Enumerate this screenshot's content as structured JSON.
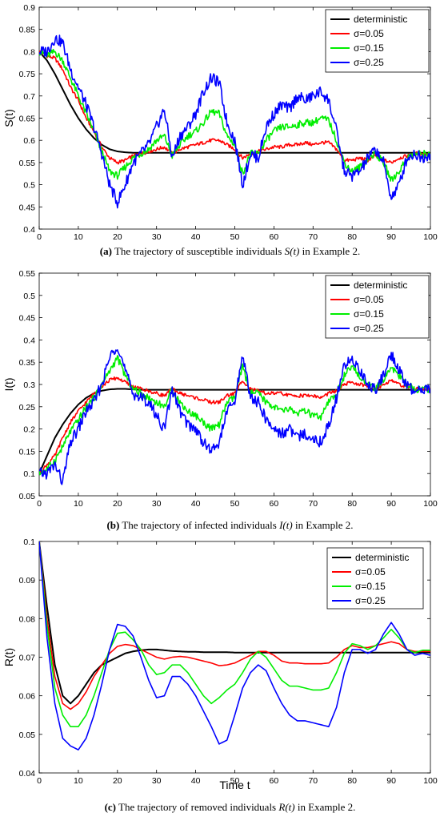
{
  "chart_data": [
    {
      "type": "line",
      "panel": "a",
      "ylabel": "S(t)",
      "xlabel": "",
      "xlim": [
        0,
        100
      ],
      "ylim": [
        0.4,
        0.9
      ],
      "xticks": [
        "0",
        "10",
        "20",
        "30",
        "40",
        "50",
        "60",
        "70",
        "80",
        "90",
        "100"
      ],
      "yticks": [
        "0.4",
        "0.45",
        "0.5",
        "0.55",
        "0.6",
        "0.65",
        "0.7",
        "0.75",
        "0.8",
        "0.85",
        "0.9"
      ],
      "legend_position": "top-right",
      "caption": {
        "label": "(a)",
        "text": " The trajectory of susceptible individuals ",
        "sym": "S(t)",
        "tail": " in Example 2."
      },
      "x": [
        0,
        2,
        4,
        6,
        8,
        10,
        12,
        14,
        16,
        18,
        20,
        22,
        24,
        26,
        28,
        30,
        32,
        34,
        36,
        38,
        40,
        42,
        44,
        46,
        48,
        50,
        52,
        54,
        56,
        58,
        60,
        62,
        64,
        66,
        68,
        70,
        72,
        74,
        76,
        78,
        80,
        82,
        84,
        86,
        88,
        90,
        92,
        94,
        96,
        98,
        100
      ],
      "series": [
        {
          "name": "deterministic",
          "color": "#000000",
          "values": [
            0.8,
            0.78,
            0.75,
            0.715,
            0.68,
            0.65,
            0.625,
            0.605,
            0.59,
            0.58,
            0.575,
            0.573,
            0.572,
            0.572,
            0.572,
            0.572,
            0.572,
            0.572,
            0.572,
            0.572,
            0.572,
            0.572,
            0.572,
            0.572,
            0.572,
            0.572,
            0.572,
            0.572,
            0.572,
            0.572,
            0.572,
            0.572,
            0.572,
            0.572,
            0.572,
            0.572,
            0.572,
            0.572,
            0.572,
            0.572,
            0.572,
            0.572,
            0.572,
            0.572,
            0.572,
            0.572,
            0.572,
            0.572,
            0.572,
            0.572,
            0.572
          ]
        },
        {
          "name": "σ=0.05",
          "color": "#ff0000",
          "values": [
            0.8,
            0.79,
            0.785,
            0.76,
            0.72,
            0.69,
            0.65,
            0.62,
            0.585,
            0.56,
            0.55,
            0.555,
            0.565,
            0.57,
            0.575,
            0.58,
            0.585,
            0.57,
            0.58,
            0.585,
            0.59,
            0.595,
            0.6,
            0.6,
            0.59,
            0.58,
            0.56,
            0.57,
            0.575,
            0.58,
            0.585,
            0.585,
            0.59,
            0.59,
            0.595,
            0.59,
            0.595,
            0.595,
            0.58,
            0.555,
            0.555,
            0.56,
            0.555,
            0.565,
            0.555,
            0.55,
            0.56,
            0.565,
            0.57,
            0.57,
            0.57
          ]
        },
        {
          "name": "σ=0.15",
          "color": "#00ee00",
          "values": [
            0.8,
            0.79,
            0.8,
            0.78,
            0.74,
            0.7,
            0.66,
            0.62,
            0.575,
            0.53,
            0.52,
            0.54,
            0.56,
            0.57,
            0.58,
            0.6,
            0.61,
            0.565,
            0.59,
            0.61,
            0.62,
            0.64,
            0.665,
            0.66,
            0.61,
            0.59,
            0.525,
            0.57,
            0.57,
            0.6,
            0.62,
            0.63,
            0.63,
            0.635,
            0.64,
            0.64,
            0.65,
            0.645,
            0.6,
            0.55,
            0.53,
            0.54,
            0.56,
            0.57,
            0.55,
            0.51,
            0.53,
            0.56,
            0.57,
            0.57,
            0.57
          ]
        },
        {
          "name": "σ=0.25",
          "color": "#0000ff",
          "values": [
            0.8,
            0.8,
            0.83,
            0.82,
            0.76,
            0.72,
            0.68,
            0.63,
            0.57,
            0.5,
            0.46,
            0.5,
            0.55,
            0.57,
            0.59,
            0.63,
            0.67,
            0.56,
            0.61,
            0.63,
            0.66,
            0.71,
            0.74,
            0.73,
            0.64,
            0.6,
            0.5,
            0.57,
            0.56,
            0.63,
            0.66,
            0.68,
            0.67,
            0.7,
            0.69,
            0.7,
            0.71,
            0.69,
            0.62,
            0.53,
            0.52,
            0.53,
            0.56,
            0.58,
            0.55,
            0.47,
            0.5,
            0.56,
            0.57,
            0.56,
            0.57
          ]
        }
      ]
    },
    {
      "type": "line",
      "panel": "b",
      "ylabel": "I(t)",
      "xlabel": "",
      "xlim": [
        0,
        100
      ],
      "ylim": [
        0.05,
        0.55
      ],
      "xticks": [
        "0",
        "10",
        "20",
        "30",
        "40",
        "50",
        "60",
        "70",
        "80",
        "90",
        "100"
      ],
      "yticks": [
        "0.05",
        "0.1",
        "0.15",
        "0.2",
        "0.25",
        "0.3",
        "0.35",
        "0.4",
        "0.45",
        "0.5",
        "0.55"
      ],
      "legend_position": "top-right",
      "caption": {
        "label": "(b)",
        "text": " The trajectory of infected individuals ",
        "sym": "I(t)",
        "tail": " in Example 2."
      },
      "x": [
        0,
        2,
        4,
        6,
        8,
        10,
        12,
        14,
        16,
        18,
        20,
        22,
        24,
        26,
        28,
        30,
        32,
        34,
        36,
        38,
        40,
        42,
        44,
        46,
        48,
        50,
        52,
        54,
        56,
        58,
        60,
        62,
        64,
        66,
        68,
        70,
        72,
        74,
        76,
        78,
        80,
        82,
        84,
        86,
        88,
        90,
        92,
        94,
        96,
        98,
        100
      ],
      "series": [
        {
          "name": "deterministic",
          "color": "#000000",
          "values": [
            0.1,
            0.14,
            0.18,
            0.21,
            0.235,
            0.255,
            0.27,
            0.28,
            0.286,
            0.289,
            0.29,
            0.29,
            0.289,
            0.288,
            0.288,
            0.288,
            0.288,
            0.288,
            0.288,
            0.288,
            0.288,
            0.288,
            0.288,
            0.288,
            0.288,
            0.288,
            0.288,
            0.288,
            0.288,
            0.288,
            0.288,
            0.288,
            0.288,
            0.288,
            0.288,
            0.288,
            0.288,
            0.288,
            0.288,
            0.288,
            0.288,
            0.288,
            0.288,
            0.288,
            0.288,
            0.288,
            0.288,
            0.288,
            0.288,
            0.288,
            0.288
          ]
        },
        {
          "name": "σ=0.05",
          "color": "#ff0000",
          "values": [
            0.1,
            0.12,
            0.14,
            0.18,
            0.215,
            0.24,
            0.26,
            0.28,
            0.295,
            0.31,
            0.315,
            0.305,
            0.295,
            0.29,
            0.285,
            0.28,
            0.275,
            0.29,
            0.28,
            0.275,
            0.27,
            0.265,
            0.26,
            0.26,
            0.275,
            0.28,
            0.31,
            0.29,
            0.285,
            0.28,
            0.28,
            0.28,
            0.275,
            0.275,
            0.275,
            0.275,
            0.27,
            0.28,
            0.285,
            0.3,
            0.305,
            0.3,
            0.295,
            0.29,
            0.3,
            0.31,
            0.3,
            0.295,
            0.29,
            0.29,
            0.29
          ]
        },
        {
          "name": "σ=0.15",
          "color": "#00ee00",
          "values": [
            0.1,
            0.11,
            0.13,
            0.16,
            0.195,
            0.22,
            0.25,
            0.27,
            0.3,
            0.33,
            0.36,
            0.32,
            0.29,
            0.28,
            0.27,
            0.26,
            0.25,
            0.29,
            0.26,
            0.24,
            0.23,
            0.215,
            0.2,
            0.21,
            0.26,
            0.27,
            0.34,
            0.28,
            0.28,
            0.26,
            0.25,
            0.24,
            0.245,
            0.235,
            0.24,
            0.23,
            0.225,
            0.26,
            0.28,
            0.32,
            0.34,
            0.32,
            0.3,
            0.29,
            0.31,
            0.34,
            0.32,
            0.3,
            0.29,
            0.29,
            0.29
          ]
        },
        {
          "name": "σ=0.25",
          "color": "#0000ff",
          "values": [
            0.1,
            0.1,
            0.12,
            0.08,
            0.17,
            0.2,
            0.24,
            0.26,
            0.3,
            0.36,
            0.39,
            0.33,
            0.28,
            0.27,
            0.26,
            0.23,
            0.2,
            0.29,
            0.24,
            0.21,
            0.2,
            0.17,
            0.15,
            0.17,
            0.24,
            0.26,
            0.37,
            0.27,
            0.26,
            0.22,
            0.2,
            0.19,
            0.2,
            0.18,
            0.19,
            0.18,
            0.17,
            0.21,
            0.27,
            0.34,
            0.36,
            0.33,
            0.3,
            0.29,
            0.32,
            0.37,
            0.33,
            0.3,
            0.28,
            0.29,
            0.29
          ]
        }
      ]
    },
    {
      "type": "line",
      "panel": "c",
      "ylabel": "R(t)",
      "xlabel": "Time t",
      "xlim": [
        0,
        100
      ],
      "ylim": [
        0.04,
        0.1
      ],
      "xticks": [
        "0",
        "10",
        "20",
        "30",
        "40",
        "50",
        "60",
        "70",
        "80",
        "90",
        "100"
      ],
      "yticks": [
        "0.04",
        "0.05",
        "0.06",
        "0.07",
        "0.08",
        "0.09",
        "0.1"
      ],
      "legend_position": "top-right",
      "caption": {
        "label": "(c)",
        "text": " The trajectory of removed individuals ",
        "sym": "R(t)",
        "tail": " in Example 2."
      },
      "x": [
        0,
        2,
        4,
        6,
        8,
        10,
        12,
        14,
        16,
        18,
        20,
        22,
        24,
        26,
        28,
        30,
        32,
        34,
        36,
        38,
        40,
        42,
        44,
        46,
        48,
        50,
        52,
        54,
        56,
        58,
        60,
        62,
        64,
        66,
        68,
        70,
        72,
        74,
        76,
        78,
        80,
        82,
        84,
        86,
        88,
        90,
        92,
        94,
        96,
        98,
        100
      ],
      "series": [
        {
          "name": "deterministic",
          "color": "#000000",
          "values": [
            0.1,
            0.083,
            0.068,
            0.06,
            0.058,
            0.06,
            0.063,
            0.066,
            0.068,
            0.069,
            0.07,
            0.071,
            0.0715,
            0.0718,
            0.072,
            0.072,
            0.0718,
            0.0716,
            0.0715,
            0.0714,
            0.0714,
            0.0713,
            0.0713,
            0.0713,
            0.0713,
            0.0712,
            0.0712,
            0.0712,
            0.0712,
            0.0712,
            0.0712,
            0.0712,
            0.0712,
            0.0712,
            0.0712,
            0.0712,
            0.0712,
            0.0712,
            0.0712,
            0.0712,
            0.0712,
            0.0712,
            0.0712,
            0.0712,
            0.0712,
            0.0712,
            0.0712,
            0.0712,
            0.0712,
            0.0712,
            0.0712
          ]
        },
        {
          "name": "σ=0.05",
          "color": "#ff0000",
          "values": [
            0.1,
            0.08,
            0.065,
            0.058,
            0.0565,
            0.058,
            0.061,
            0.065,
            0.068,
            0.071,
            0.0728,
            0.0733,
            0.073,
            0.072,
            0.071,
            0.07,
            0.0695,
            0.07,
            0.0702,
            0.07,
            0.0695,
            0.069,
            0.0685,
            0.0678,
            0.068,
            0.0685,
            0.0695,
            0.0705,
            0.0715,
            0.0715,
            0.0705,
            0.069,
            0.0685,
            0.0685,
            0.0683,
            0.0683,
            0.0683,
            0.0685,
            0.07,
            0.072,
            0.073,
            0.0725,
            0.0725,
            0.073,
            0.0735,
            0.074,
            0.0735,
            0.072,
            0.0715,
            0.0715,
            0.0715
          ]
        },
        {
          "name": "σ=0.15",
          "color": "#00ee00",
          "values": [
            0.1,
            0.078,
            0.062,
            0.055,
            0.052,
            0.052,
            0.055,
            0.06,
            0.066,
            0.072,
            0.0762,
            0.0765,
            0.0745,
            0.072,
            0.068,
            0.0655,
            0.066,
            0.068,
            0.068,
            0.066,
            0.063,
            0.06,
            0.058,
            0.0595,
            0.0615,
            0.063,
            0.066,
            0.0695,
            0.0715,
            0.07,
            0.067,
            0.064,
            0.0625,
            0.0625,
            0.062,
            0.0615,
            0.0615,
            0.062,
            0.066,
            0.071,
            0.0735,
            0.073,
            0.072,
            0.073,
            0.075,
            0.0772,
            0.075,
            0.072,
            0.0712,
            0.0718,
            0.0718
          ]
        },
        {
          "name": "σ=0.25",
          "color": "#0000ff",
          "values": [
            0.1,
            0.075,
            0.058,
            0.049,
            0.047,
            0.046,
            0.049,
            0.055,
            0.063,
            0.072,
            0.0785,
            0.078,
            0.0755,
            0.07,
            0.064,
            0.0595,
            0.06,
            0.065,
            0.065,
            0.063,
            0.06,
            0.056,
            0.052,
            0.0475,
            0.0485,
            0.055,
            0.062,
            0.066,
            0.068,
            0.0665,
            0.062,
            0.058,
            0.055,
            0.0535,
            0.0535,
            0.053,
            0.0525,
            0.052,
            0.057,
            0.066,
            0.072,
            0.072,
            0.071,
            0.072,
            0.076,
            0.079,
            0.076,
            0.072,
            0.0705,
            0.071,
            0.0705
          ]
        }
      ]
    }
  ]
}
